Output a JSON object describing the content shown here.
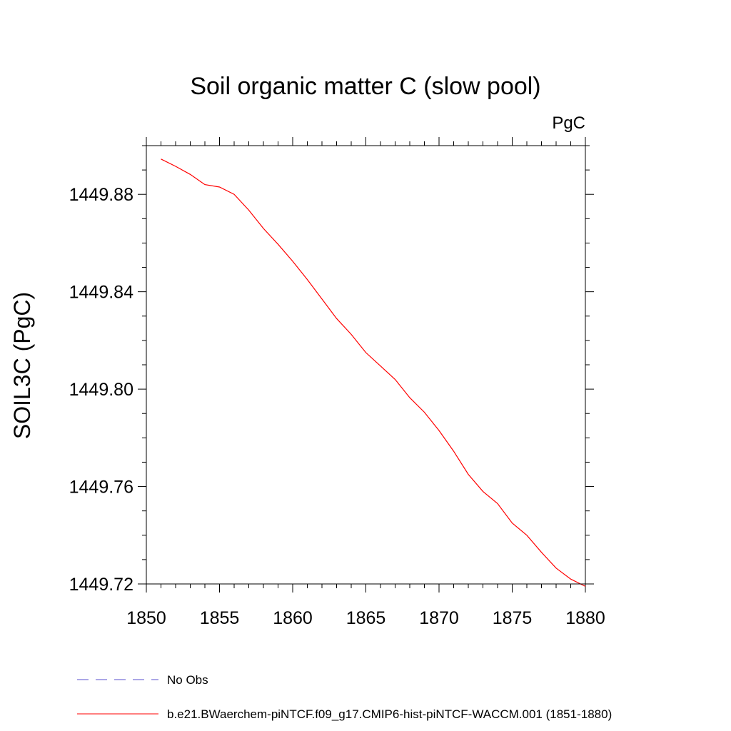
{
  "chart_data": {
    "type": "line",
    "title": "Soil organic matter C (slow pool)",
    "units_label": "PgC",
    "ylabel": "SOIL3C  (PgC)",
    "xlabel": "",
    "xlim": [
      1850,
      1880
    ],
    "ylim": [
      1449.72,
      1449.9
    ],
    "x_ticks": [
      "1850",
      "1855",
      "1860",
      "1865",
      "1870",
      "1875",
      "1880"
    ],
    "y_ticks": [
      "1449.72",
      "1449.76",
      "1449.80",
      "1449.84",
      "1449.88"
    ],
    "grid": false,
    "legend_position": "bottom",
    "series": [
      {
        "name": "No Obs",
        "color": "#5a4fcf",
        "style": "dashed",
        "x": [],
        "y": []
      },
      {
        "name": "b.e21.BWaerchem-piNTCF.f09_g17.CMIP6-hist-piNTCF-WACCM.001 (1851-1880)",
        "color": "#ff0000",
        "style": "solid",
        "x": [
          1851,
          1852,
          1853,
          1854,
          1855,
          1856,
          1857,
          1858,
          1859,
          1860,
          1861,
          1862,
          1863,
          1864,
          1865,
          1866,
          1867,
          1868,
          1869,
          1870,
          1871,
          1872,
          1873,
          1874,
          1875,
          1876,
          1877,
          1878,
          1879,
          1880
        ],
        "y": [
          1449.8945,
          1449.8915,
          1449.8882,
          1449.884,
          1449.883,
          1449.88,
          1449.8735,
          1449.866,
          1449.8595,
          1449.8525,
          1449.845,
          1449.837,
          1449.829,
          1449.8225,
          1449.815,
          1449.8095,
          1449.804,
          1449.7965,
          1449.7905,
          1449.783,
          1449.7745,
          1449.765,
          1449.758,
          1449.753,
          1449.745,
          1449.74,
          1449.733,
          1449.7265,
          1449.722,
          1449.719
        ]
      }
    ]
  }
}
